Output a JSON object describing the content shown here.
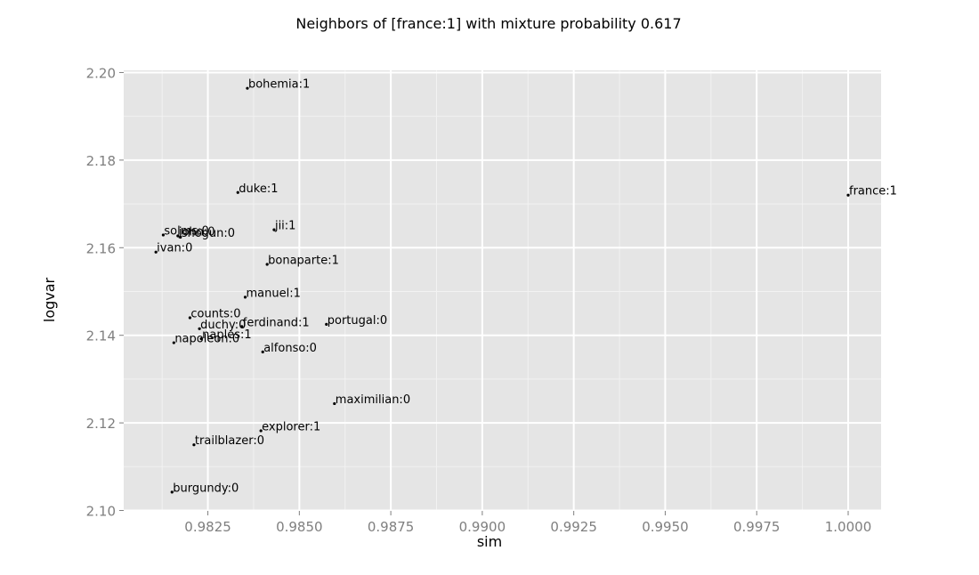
{
  "chart_data": {
    "type": "scatter",
    "title": "Neighbors of [france:1] with mixture probability 0.617",
    "xlabel": "sim",
    "ylabel": "logvar",
    "xlim": [
      0.9802,
      1.0009
    ],
    "ylim": [
      2.0999,
      2.2005
    ],
    "xticks": [
      {
        "value": 0.9825,
        "label": "0.9825"
      },
      {
        "value": 0.985,
        "label": "0.9850"
      },
      {
        "value": 0.9875,
        "label": "0.9875"
      },
      {
        "value": 0.99,
        "label": "0.9900"
      },
      {
        "value": 0.9925,
        "label": "0.9925"
      },
      {
        "value": 0.995,
        "label": "0.9950"
      },
      {
        "value": 0.9975,
        "label": "0.9975"
      },
      {
        "value": 1.0,
        "label": "1.0000"
      }
    ],
    "yticks": [
      {
        "value": 2.1,
        "label": "2.10"
      },
      {
        "value": 2.12,
        "label": "2.12"
      },
      {
        "value": 2.14,
        "label": "2.14"
      },
      {
        "value": 2.16,
        "label": "2.16"
      },
      {
        "value": 2.18,
        "label": "2.18"
      },
      {
        "value": 2.2,
        "label": "2.20"
      }
    ],
    "grid": true,
    "points": [
      {
        "label": "bohemia:1",
        "x": 0.98358,
        "y": 2.1964
      },
      {
        "label": "duke:1",
        "x": 0.98332,
        "y": 2.1726
      },
      {
        "label": "france:1",
        "x": 1.0,
        "y": 2.172
      },
      {
        "label": "jii:1",
        "x": 0.98431,
        "y": 2.1641
      },
      {
        "label": "solms:0",
        "x": 0.98128,
        "y": 2.1629
      },
      {
        "label": "john:0",
        "x": 0.98168,
        "y": 2.1627
      },
      {
        "label": "shogun:0",
        "x": 0.98175,
        "y": 2.1624
      },
      {
        "label": "ivan:0",
        "x": 0.98108,
        "y": 2.159
      },
      {
        "label": "bonaparte:1",
        "x": 0.98412,
        "y": 2.1562
      },
      {
        "label": "manuel:1",
        "x": 0.98352,
        "y": 2.1487
      },
      {
        "label": "counts:0",
        "x": 0.98201,
        "y": 2.144
      },
      {
        "label": "portugal:0",
        "x": 0.98574,
        "y": 2.1425
      },
      {
        "label": "ferdinand:1",
        "x": 0.98343,
        "y": 2.142
      },
      {
        "label": "duchy:0",
        "x": 0.98227,
        "y": 2.1415
      },
      {
        "label": "naples:1",
        "x": 0.98232,
        "y": 2.1392
      },
      {
        "label": "napoleon:0",
        "x": 0.98157,
        "y": 2.1383
      },
      {
        "label": "alfonso:0",
        "x": 0.984,
        "y": 2.1362
      },
      {
        "label": "maximilian:0",
        "x": 0.98596,
        "y": 2.1244
      },
      {
        "label": "explorer:1",
        "x": 0.98395,
        "y": 2.1182
      },
      {
        "label": "trailblazer:0",
        "x": 0.98212,
        "y": 2.115
      },
      {
        "label": "burgundy:0",
        "x": 0.98152,
        "y": 2.1042
      }
    ]
  }
}
